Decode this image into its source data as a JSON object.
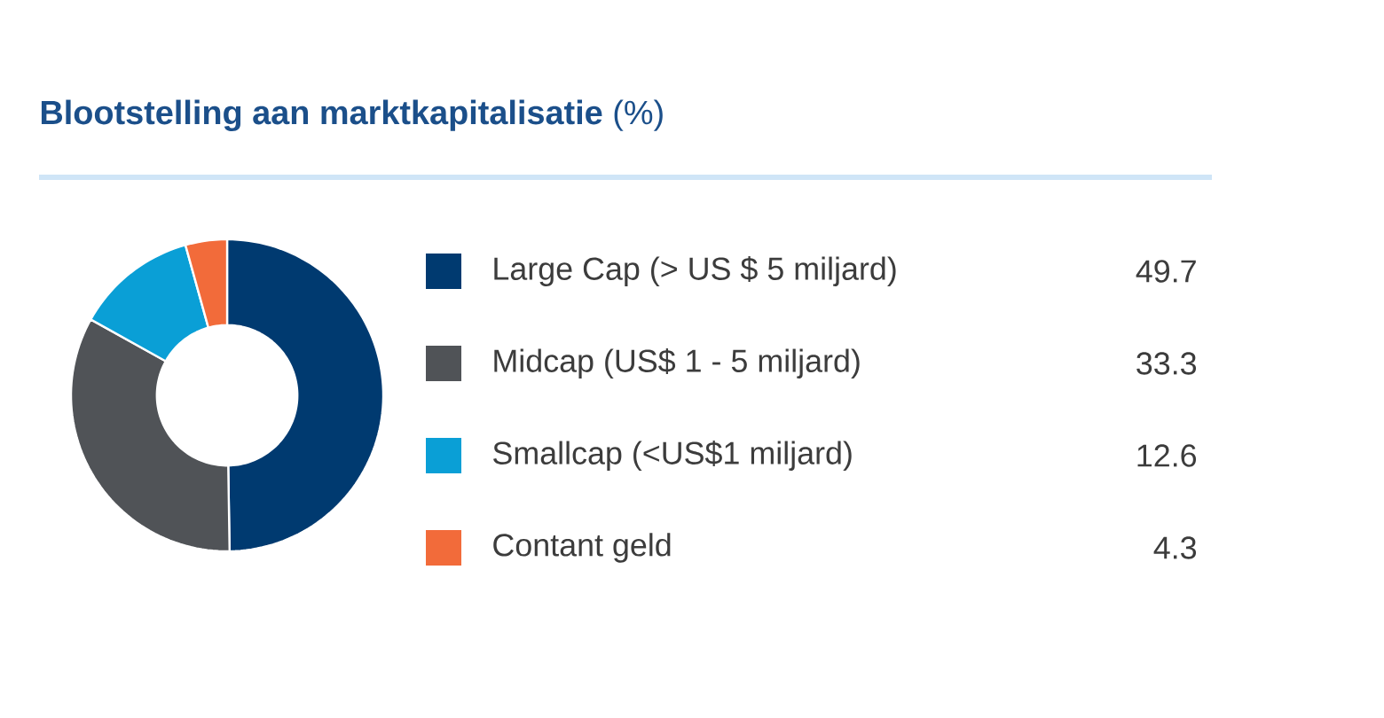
{
  "chart_data": {
    "type": "donut",
    "title": "**Blootstelling aan marktkapitalisatie** (%)",
    "categories": [
      "Large Cap (> US $ 5 miljard)",
      "Midcap (US$ 1 - 5 miljard)",
      "Smallcap (<US$1 miljard)",
      "Contant geld"
    ],
    "values": [
      49.7,
      33.3,
      12.6,
      4.3
    ],
    "colors": [
      "#003a70",
      "#505357",
      "#0a9fd6",
      "#f26b3a"
    ],
    "legend": "right",
    "data_labels": true
  }
}
